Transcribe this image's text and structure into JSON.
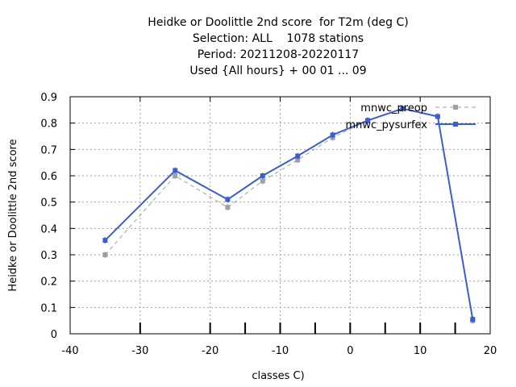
{
  "chart_data": {
    "type": "line",
    "title": [
      "Heidke or Doolittle 2nd score  for T2m (deg C)",
      "Selection: ALL    1078 stations",
      "Period: 20211208-20220117",
      "Used {All hours} + 00 01 ... 09"
    ],
    "xlabel": "classes C)",
    "ylabel": "Heidke or Doolittle 2nd score",
    "xlim": [
      -40,
      20
    ],
    "ylim": [
      0,
      0.9
    ],
    "xticks": [
      -40,
      -30,
      -20,
      -10,
      0,
      10,
      20
    ],
    "yticks": [
      0,
      0.1,
      0.2,
      0.3,
      0.4,
      0.5,
      0.6,
      0.7,
      0.8,
      0.9
    ],
    "grid": true,
    "legend_position": "top-right",
    "series": [
      {
        "name": "mnwc_preop",
        "color": "#a0a0a0",
        "style": "dashed",
        "x": [
          -35,
          -25,
          -17.5,
          -12.5,
          -7.5,
          -2.5,
          2.5,
          7.5,
          12.5,
          17.5
        ],
        "y": [
          0.3,
          0.6,
          0.48,
          0.58,
          0.66,
          0.745,
          0.81,
          0.855,
          0.825,
          0.05
        ]
      },
      {
        "name": "mnwc_pysurfex",
        "color": "#3a5fcd",
        "style": "solid",
        "x": [
          -35,
          -25,
          -17.5,
          -12.5,
          -7.5,
          -2.5,
          2.5,
          7.5,
          12.5,
          17.5
        ],
        "y": [
          0.355,
          0.62,
          0.51,
          0.6,
          0.675,
          0.755,
          0.81,
          0.855,
          0.825,
          0.055
        ]
      }
    ],
    "bottom_marker_x": [
      -30,
      -20,
      -15,
      -10,
      -5,
      0,
      5,
      10,
      15
    ]
  }
}
